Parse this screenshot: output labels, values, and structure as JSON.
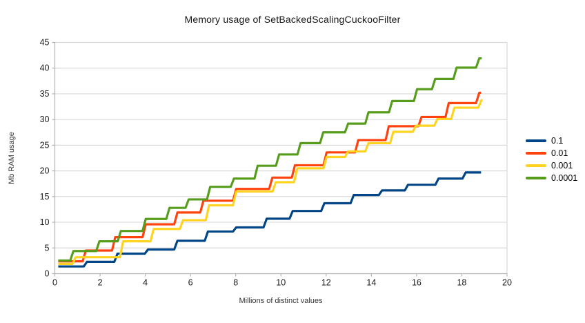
{
  "page": {
    "background": "#ffffff"
  },
  "chart_data": {
    "type": "line",
    "subtype": "step",
    "title": "Memory usage of SetBackedScalingCuckooFilter",
    "xlabel": "Millions of distinct values",
    "ylabel": "Mb RAM usage",
    "xlim": [
      0,
      20
    ],
    "ylim": [
      0,
      45
    ],
    "x_ticks": [
      0,
      2,
      4,
      6,
      8,
      10,
      12,
      14,
      16,
      18,
      20
    ],
    "y_ticks": [
      0,
      5,
      10,
      15,
      20,
      25,
      30,
      35,
      40,
      45
    ],
    "grid": "horizontal",
    "legend_position": "right",
    "colors": {
      "axis": "#b3b3b3",
      "grid": "#d9d9d9",
      "tick_text": "#1a1a1a",
      "title_text": "#141414"
    },
    "series": [
      {
        "name": "0.1",
        "color": "#004586",
        "x_end": 18.85,
        "steps": [
          [
            0.15,
            1.4
          ],
          [
            1.35,
            2.3
          ],
          [
            2.7,
            3.9
          ],
          [
            4.05,
            4.7
          ],
          [
            5.35,
            6.4
          ],
          [
            6.7,
            8.2
          ],
          [
            7.95,
            9.0
          ],
          [
            9.3,
            10.7
          ],
          [
            10.45,
            12.2
          ],
          [
            11.85,
            13.7
          ],
          [
            13.15,
            15.3
          ],
          [
            14.4,
            16.2
          ],
          [
            15.55,
            17.3
          ],
          [
            16.9,
            18.5
          ],
          [
            18.1,
            19.7
          ]
        ]
      },
      {
        "name": "0.01",
        "color": "#FF420E",
        "x_end": 18.85,
        "steps": [
          [
            0.15,
            2.4
          ],
          [
            1.3,
            4.5
          ],
          [
            2.6,
            7.1
          ],
          [
            3.95,
            9.6
          ],
          [
            5.35,
            11.9
          ],
          [
            6.5,
            14.2
          ],
          [
            7.95,
            16.5
          ],
          [
            9.55,
            18.7
          ],
          [
            10.55,
            21.1
          ],
          [
            11.95,
            23.6
          ],
          [
            13.35,
            26.0
          ],
          [
            14.7,
            28.7
          ],
          [
            16.15,
            30.5
          ],
          [
            17.35,
            33.2
          ],
          [
            18.7,
            35.2
          ]
        ]
      },
      {
        "name": "0.001",
        "color": "#FFD320",
        "x_end": 18.85,
        "steps": [
          [
            0.15,
            1.9
          ],
          [
            0.85,
            3.2
          ],
          [
            2.95,
            6.3
          ],
          [
            4.3,
            8.7
          ],
          [
            5.6,
            10.4
          ],
          [
            6.75,
            13.3
          ],
          [
            7.95,
            16.0
          ],
          [
            9.7,
            17.8
          ],
          [
            10.65,
            20.5
          ],
          [
            11.95,
            22.7
          ],
          [
            12.9,
            23.8
          ],
          [
            13.8,
            25.4
          ],
          [
            14.9,
            27.6
          ],
          [
            15.9,
            28.8
          ],
          [
            16.85,
            30.1
          ],
          [
            17.6,
            32.3
          ],
          [
            18.8,
            33.8
          ]
        ]
      },
      {
        "name": "0.0001",
        "color": "#579D1C",
        "x_end": 18.88,
        "steps": [
          [
            0.15,
            2.55
          ],
          [
            0.75,
            4.4
          ],
          [
            1.9,
            6.3
          ],
          [
            2.85,
            8.3
          ],
          [
            3.95,
            10.65
          ],
          [
            5.0,
            12.8
          ],
          [
            5.85,
            14.45
          ],
          [
            6.8,
            16.9
          ],
          [
            7.85,
            18.5
          ],
          [
            8.9,
            21.0
          ],
          [
            9.85,
            23.2
          ],
          [
            10.8,
            25.4
          ],
          [
            11.8,
            27.5
          ],
          [
            12.9,
            29.2
          ],
          [
            13.8,
            31.4
          ],
          [
            14.85,
            33.6
          ],
          [
            15.95,
            35.9
          ],
          [
            16.75,
            37.9
          ],
          [
            17.7,
            40.1
          ],
          [
            18.7,
            41.9
          ]
        ]
      }
    ]
  }
}
